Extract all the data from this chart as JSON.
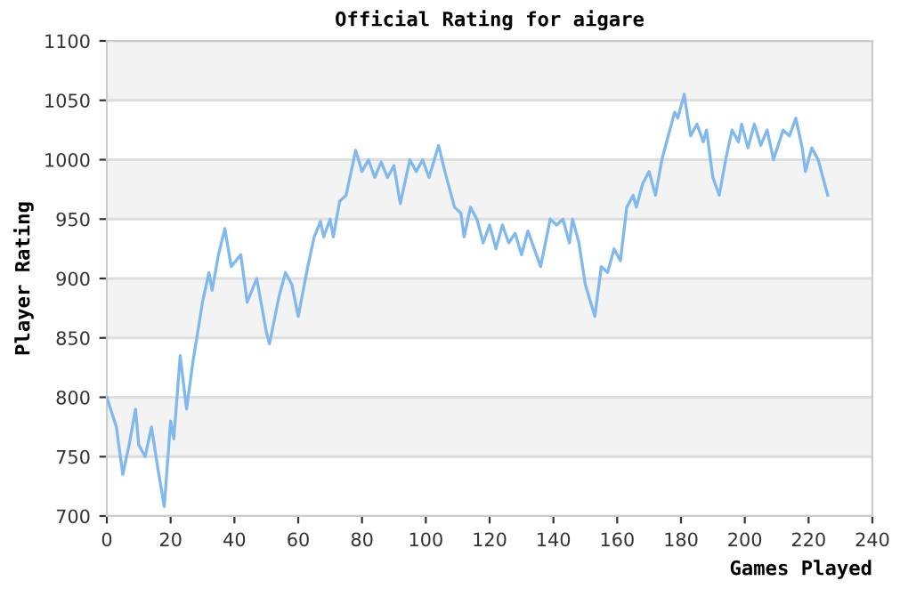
{
  "chart_data": {
    "type": "line",
    "title": "Official Rating for aigare",
    "xlabel": "Games Played",
    "ylabel": "Player Rating",
    "series": [
      {
        "color": "#80b8f0",
        "x": [
          0,
          3,
          5,
          7,
          9,
          10,
          12,
          14,
          16,
          18,
          20,
          21,
          23,
          25,
          27,
          30,
          32,
          33,
          35,
          37,
          39,
          42,
          44,
          47,
          50,
          51,
          54,
          56,
          58,
          60,
          63,
          65,
          67,
          68,
          70,
          71,
          73,
          75,
          77,
          78,
          80,
          82,
          84,
          86,
          88,
          90,
          92,
          95,
          97,
          99,
          101,
          104,
          106,
          109,
          111,
          112,
          114,
          116,
          118,
          120,
          122,
          124,
          126,
          128,
          130,
          132,
          134,
          136,
          139,
          141,
          143,
          145,
          146,
          148,
          150,
          153,
          155,
          157,
          159,
          161,
          163,
          165,
          166,
          168,
          170,
          172,
          174,
          176,
          178,
          179,
          181,
          183,
          185,
          187,
          188,
          190,
          192,
          194,
          196,
          198,
          199,
          201,
          203,
          205,
          207,
          209,
          212,
          214,
          216,
          218,
          219,
          221,
          223,
          225,
          226
        ],
        "values": [
          800,
          775,
          735,
          760,
          790,
          760,
          750,
          775,
          740,
          708,
          780,
          765,
          835,
          790,
          830,
          880,
          905,
          890,
          920,
          942,
          910,
          920,
          880,
          900,
          855,
          845,
          885,
          905,
          895,
          868,
          910,
          935,
          948,
          935,
          950,
          935,
          965,
          970,
          995,
          1008,
          990,
          1000,
          985,
          998,
          985,
          995,
          963,
          1000,
          990,
          1000,
          985,
          1012,
          990,
          960,
          955,
          935,
          960,
          950,
          930,
          945,
          925,
          945,
          930,
          938,
          920,
          940,
          925,
          910,
          950,
          945,
          950,
          930,
          950,
          930,
          895,
          868,
          910,
          905,
          925,
          915,
          960,
          970,
          960,
          980,
          990,
          970,
          1000,
          1020,
          1040,
          1035,
          1055,
          1020,
          1030,
          1015,
          1025,
          985,
          970,
          1000,
          1025,
          1015,
          1030,
          1010,
          1030,
          1012,
          1025,
          1000,
          1025,
          1020,
          1035,
          1010,
          990,
          1010,
          1000,
          980,
          970
        ]
      }
    ],
    "xlim": [
      0,
      240
    ],
    "xticks": [
      0,
      20,
      40,
      60,
      80,
      100,
      120,
      140,
      160,
      180,
      200,
      220,
      240
    ],
    "ylim": [
      700,
      1100
    ],
    "yticks": [
      700,
      750,
      800,
      850,
      900,
      950,
      1000,
      1050,
      1100
    ],
    "grid": "y",
    "legend": false,
    "marker": "none",
    "line_style": "solid"
  }
}
